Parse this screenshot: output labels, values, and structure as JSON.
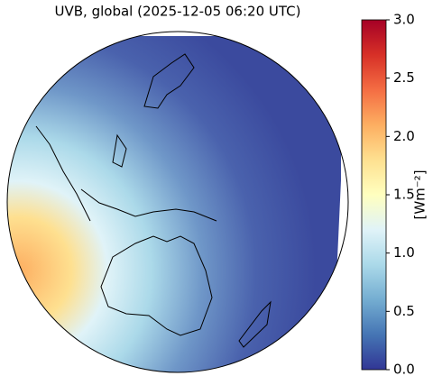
{
  "chart_data": {
    "type": "map",
    "title": "UVB, global (2025-12-05 06:20 UTC)",
    "colorbar": {
      "label": "[Wm⁻²]",
      "lim": [
        0,
        3
      ],
      "ticks": [
        {
          "value": 0,
          "label": "0.0"
        },
        0.5,
        {
          "value": 1,
          "label": "1.0"
        },
        1.5,
        {
          "value": 2,
          "label": "2.0"
        },
        2.5,
        {
          "value": 3,
          "label": "3.0"
        }
      ],
      "colors": [
        "#313695",
        "#4575b4",
        "#74add1",
        "#abd9e9",
        "#e0f3f8",
        "#ffffbf",
        "#fee090",
        "#fdae61",
        "#f46d43",
        "#d73027",
        "#a50026"
      ]
    }
  }
}
